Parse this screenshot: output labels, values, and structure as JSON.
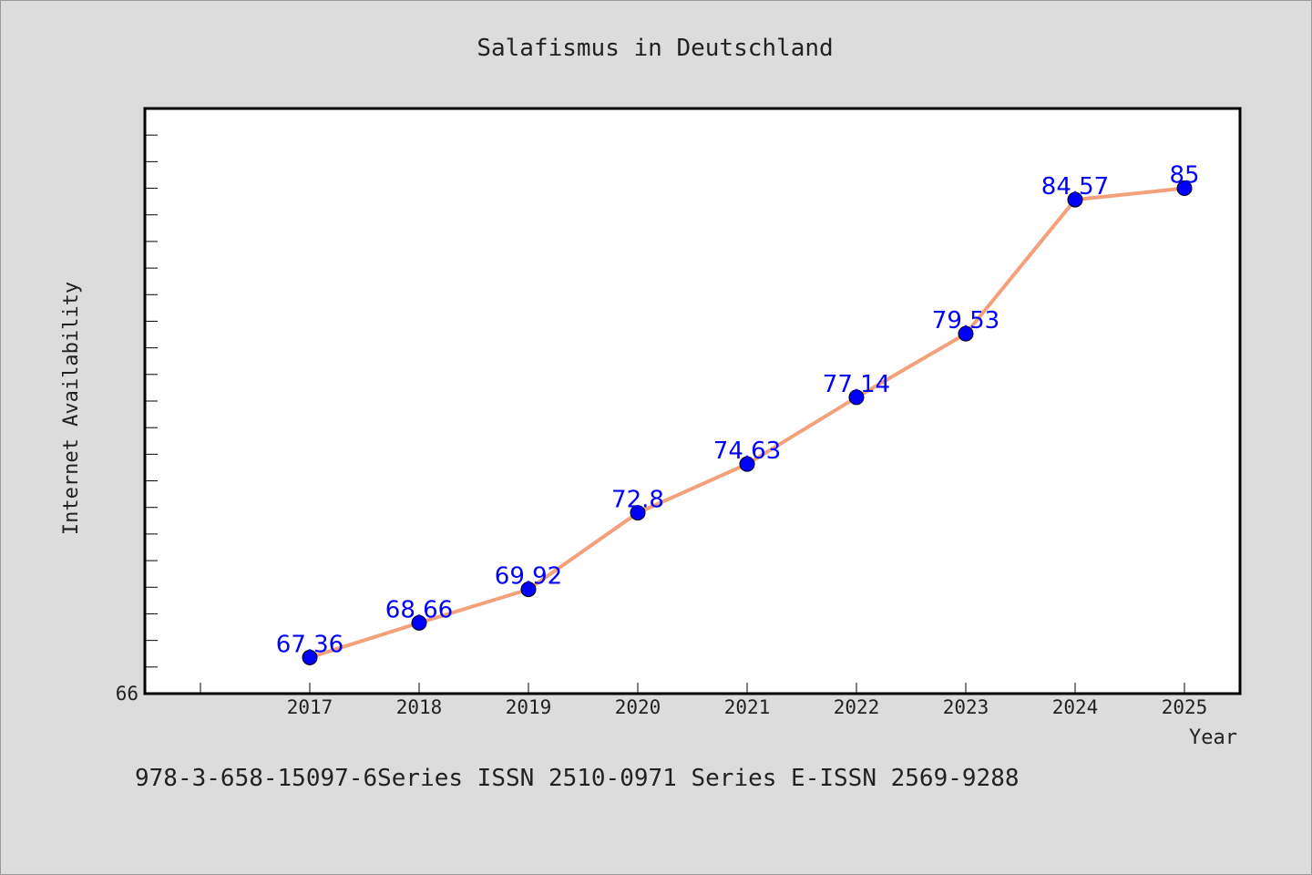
{
  "colors": {
    "background": "#dcdcdc",
    "plot_background": "#ffffff",
    "line": "#f4a07a",
    "marker": "#0000ff",
    "data_label": "#0000ff"
  },
  "footer_text": "978-3-658-15097-6Series ISSN 2510-0971 Series E-ISSN 2569-9288",
  "chart_data": {
    "type": "line",
    "title": "Salafismus in Deutschland",
    "xlabel": "Year",
    "ylabel": "Internet Availability",
    "categories": [
      "2017",
      "2018",
      "2019",
      "2020",
      "2021",
      "2022",
      "2023",
      "2024",
      "2025"
    ],
    "series": [
      {
        "values": [
          67.36,
          68.66,
          69.92,
          72.8,
          74.63,
          77.14,
          79.53,
          84.57,
          85
        ],
        "labels": [
          "67.36",
          "68.66",
          "69.92",
          "72.8",
          "74.63",
          "77.14",
          "79.53",
          "84.57",
          "85"
        ]
      }
    ],
    "ylim": [
      66,
      88
    ],
    "y_tick_labels": [
      "66"
    ],
    "y_minor_tick_step": 1,
    "grid": false,
    "legend": "none",
    "markers": "filled-circle"
  }
}
